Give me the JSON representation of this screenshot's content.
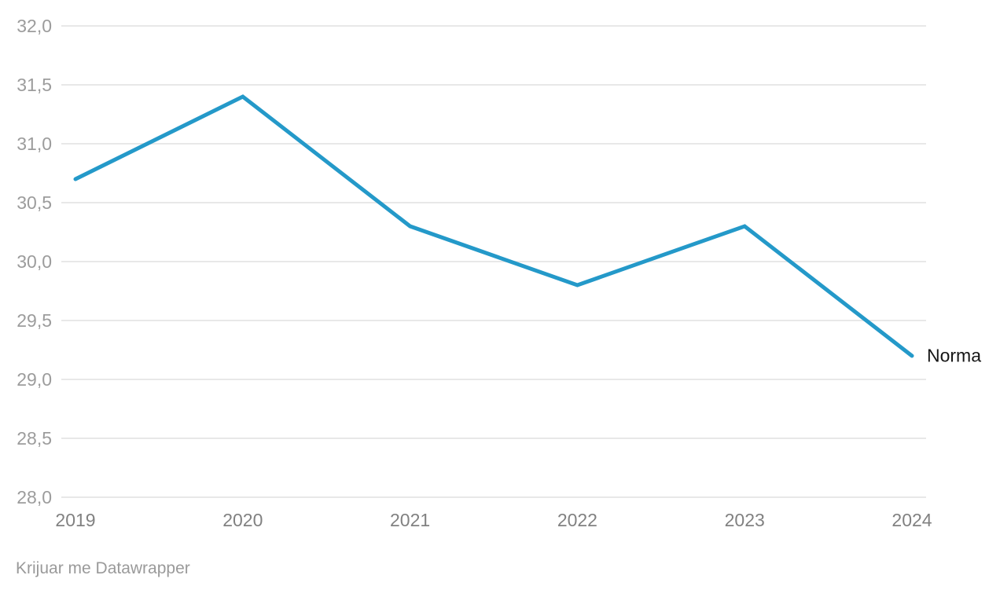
{
  "chart_data": {
    "type": "line",
    "categories": [
      "2019",
      "2020",
      "2021",
      "2022",
      "2023",
      "2024"
    ],
    "series": [
      {
        "name": "Norma",
        "values": [
          30.7,
          31.4,
          30.3,
          29.8,
          30.3,
          29.2
        ],
        "color": "#2499c9"
      }
    ],
    "title": "",
    "xlabel": "",
    "ylabel": "",
    "ylim": [
      28.0,
      32.0
    ],
    "y_tick_step": 0.5,
    "y_ticks": [
      {
        "value": 32.0,
        "label": "32,0"
      },
      {
        "value": 31.5,
        "label": "31,5"
      },
      {
        "value": 31.0,
        "label": "31,0"
      },
      {
        "value": 30.5,
        "label": "30,5"
      },
      {
        "value": 30.0,
        "label": "30,0"
      },
      {
        "value": 29.5,
        "label": "29,5"
      },
      {
        "value": 29.0,
        "label": "29,0"
      },
      {
        "value": 28.5,
        "label": "28,5"
      },
      {
        "value": 28.0,
        "label": "28,0"
      }
    ],
    "grid": true,
    "gridline_color": "#e8e8e8",
    "legend_position": "end-of-line-label",
    "decimal_separator": ","
  },
  "footer": {
    "attribution": "Krijuar me Datawrapper"
  },
  "colors": {
    "background": "#ffffff",
    "line": "#2499c9",
    "y_tick_text": "#9c9c9c",
    "x_tick_text": "#818181",
    "series_label_text": "#161616",
    "attribution_text": "#9a9a9a",
    "gridline": "#e8e8e8"
  }
}
